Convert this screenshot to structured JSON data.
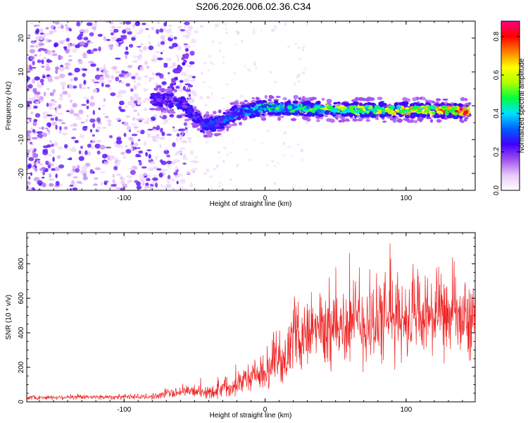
{
  "title": "S206.2026.006.02.36.C34",
  "chart_data": [
    {
      "type": "heatmap",
      "xlabel": "Height of straight line (km)",
      "ylabel": "Frequency (Hz)",
      "xlim": [
        -169,
        149
      ],
      "ylim": [
        -25,
        25
      ],
      "xticks": [
        -100,
        0,
        100
      ],
      "yticks": [
        -20,
        -10,
        0,
        10,
        20
      ],
      "colorbar": {
        "label": "Normalized spectral amplitude",
        "range": [
          0,
          0.88
        ],
        "ticks": [
          0.0,
          0.2,
          0.4,
          0.6,
          0.8
        ],
        "colors": [
          "#ffffff",
          "#e8c8f8",
          "#a050f0",
          "#4000ff",
          "#0060ff",
          "#00e0ff",
          "#00ff40",
          "#b0ff00",
          "#ffff00",
          "#ff8000",
          "#ff0000",
          "#ff0080"
        ]
      },
      "ridge": [
        {
          "x": -80,
          "freq": 2.0,
          "amp": 0.22
        },
        {
          "x": -60,
          "freq": 1.0,
          "amp": 0.25
        },
        {
          "x": -45,
          "freq": -5.5,
          "amp": 0.28
        },
        {
          "x": -35,
          "freq": -5.5,
          "amp": 0.3
        },
        {
          "x": -20,
          "freq": -2.0,
          "amp": 0.35
        },
        {
          "x": 0,
          "freq": -0.5,
          "amp": 0.45
        },
        {
          "x": 40,
          "freq": -1.0,
          "amp": 0.55
        },
        {
          "x": 80,
          "freq": -1.2,
          "amp": 0.6
        },
        {
          "x": 120,
          "freq": -1.3,
          "amp": 0.7
        },
        {
          "x": 145,
          "freq": -1.6,
          "amp": 0.85
        }
      ]
    },
    {
      "type": "line",
      "xlabel": "Height of straight line (km)",
      "ylabel": "SNR (10 * v/v)",
      "xlim": [
        -169,
        149
      ],
      "ylim": [
        0,
        980
      ],
      "xticks": [
        -100,
        0,
        100
      ],
      "yticks": [
        0,
        200,
        400,
        600,
        800
      ],
      "color": "#ee2222",
      "envelope": [
        {
          "x": -169,
          "mean": 25,
          "spread": 15
        },
        {
          "x": -80,
          "mean": 30,
          "spread": 20
        },
        {
          "x": -60,
          "mean": 60,
          "spread": 40
        },
        {
          "x": -40,
          "mean": 55,
          "spread": 50
        },
        {
          "x": -20,
          "mean": 110,
          "spread": 90
        },
        {
          "x": 0,
          "mean": 170,
          "spread": 120
        },
        {
          "x": 15,
          "mean": 260,
          "spread": 150
        },
        {
          "x": 20,
          "mean": 380,
          "spread": 220
        },
        {
          "x": 40,
          "mean": 420,
          "spread": 300
        },
        {
          "x": 80,
          "mean": 470,
          "spread": 320
        },
        {
          "x": 120,
          "mean": 490,
          "spread": 300
        },
        {
          "x": 149,
          "mean": 470,
          "spread": 280
        }
      ]
    }
  ]
}
